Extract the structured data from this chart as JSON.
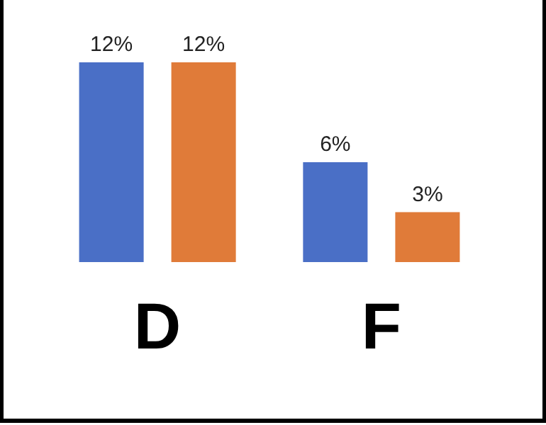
{
  "chart_data": {
    "type": "bar",
    "categories": [
      "D",
      "F"
    ],
    "series": [
      {
        "color": "#4a6fc6",
        "values": [
          12,
          6
        ],
        "value_labels": [
          "12%",
          "6%"
        ]
      },
      {
        "color": "#e07b39",
        "values": [
          12,
          3
        ],
        "value_labels": [
          "12%",
          "3%"
        ]
      }
    ]
  }
}
